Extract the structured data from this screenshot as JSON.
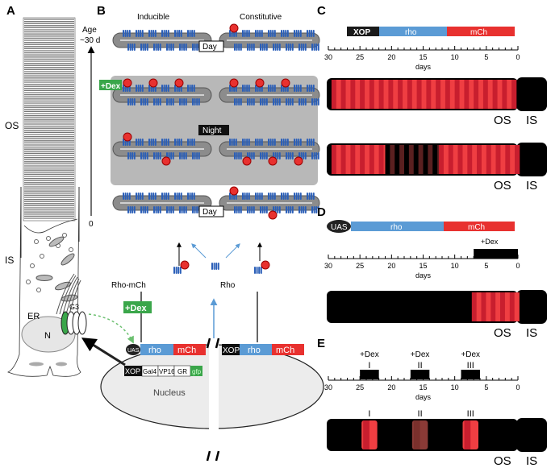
{
  "panels": {
    "a": {
      "label": "A",
      "os": "OS",
      "is": "IS",
      "er": "ER",
      "n": "N",
      "age_label_1": "Age",
      "age_label_2": "~30 d",
      "age_zero": "0"
    },
    "b": {
      "label": "B",
      "inducible": "Inducible",
      "constitutive": "Constitutive",
      "day": "Day",
      "night": "Night",
      "dex": "+Dex",
      "rho_mch": "Rho-mCh",
      "rho": "Rho",
      "g3": "G3",
      "nucleus": "Nucleus",
      "construct_inducible": [
        "UAS",
        "rho",
        "mCh"
      ],
      "construct_driver": [
        "XOP",
        "Gal4",
        "VP16",
        "GR",
        "gfp"
      ],
      "construct_constitutive": [
        "XOP",
        "rho",
        "mCh"
      ]
    },
    "c": {
      "label": "C",
      "construct": [
        "XOP",
        "rho",
        "mCh"
      ],
      "axis_label": "days",
      "ticks": [
        30,
        25,
        20,
        15,
        10,
        5,
        0
      ],
      "os": "OS",
      "is": "IS"
    },
    "d": {
      "label": "D",
      "construct": [
        "UAS",
        "rho",
        "mCh"
      ],
      "dex": "+Dex",
      "dex_days": [
        7,
        0
      ],
      "axis_label": "days",
      "ticks": [
        30,
        25,
        20,
        15,
        10,
        5,
        0
      ],
      "os": "OS",
      "is": "IS"
    },
    "e": {
      "label": "E",
      "pulses": [
        {
          "dex": "+Dex",
          "roman": "I",
          "days": [
            25,
            22
          ]
        },
        {
          "dex": "+Dex",
          "roman": "II",
          "days": [
            17,
            14
          ]
        },
        {
          "dex": "+Dex",
          "roman": "III",
          "days": [
            9,
            6
          ]
        }
      ],
      "axis_label": "days",
      "ticks": [
        30,
        25,
        20,
        15,
        10,
        5,
        0
      ],
      "os": "OS",
      "is": "IS"
    }
  },
  "colors": {
    "rho": "#5b9bd5",
    "mch": "#e8312f",
    "xop": "#1a1a1a",
    "dex_green": "#3aa64a",
    "disc_gray": "#8c8c8c",
    "night_box": "#b8b8b8",
    "rhodopsin_blue": "#2b5fb8"
  }
}
